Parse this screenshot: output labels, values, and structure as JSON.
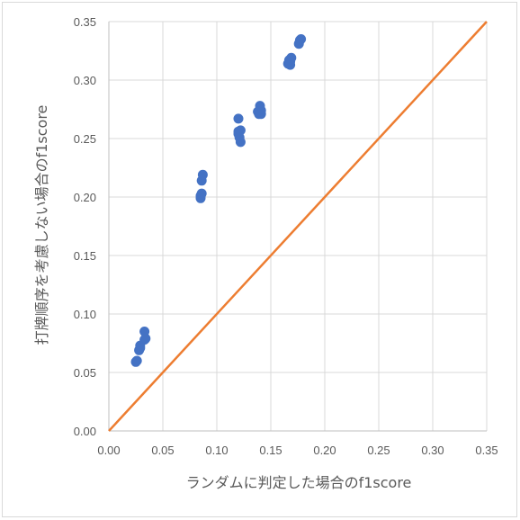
{
  "chart_data": {
    "type": "scatter",
    "xlabel": "ランダムに判定した場合のf1score",
    "ylabel": "打牌順序を考慮しない場合のf1score",
    "xlim": [
      0,
      0.35
    ],
    "ylim": [
      0,
      0.35
    ],
    "x_ticks": [
      "0.00",
      "0.05",
      "0.10",
      "0.15",
      "0.20",
      "0.25",
      "0.30",
      "0.35"
    ],
    "y_ticks": [
      "0.00",
      "0.05",
      "0.10",
      "0.15",
      "0.20",
      "0.25",
      "0.30",
      "0.35"
    ],
    "grid": true,
    "series": [
      {
        "type": "scatter",
        "color": "#4472C4",
        "points": [
          [
            0.025,
            0.059
          ],
          [
            0.026,
            0.06
          ],
          [
            0.028,
            0.069
          ],
          [
            0.029,
            0.071
          ],
          [
            0.029,
            0.073
          ],
          [
            0.033,
            0.078
          ],
          [
            0.033,
            0.085
          ],
          [
            0.034,
            0.079
          ],
          [
            0.085,
            0.199
          ],
          [
            0.085,
            0.201
          ],
          [
            0.086,
            0.203
          ],
          [
            0.086,
            0.214
          ],
          [
            0.087,
            0.219
          ],
          [
            0.12,
            0.267
          ],
          [
            0.12,
            0.256
          ],
          [
            0.12,
            0.254
          ],
          [
            0.121,
            0.251
          ],
          [
            0.122,
            0.257
          ],
          [
            0.122,
            0.247
          ],
          [
            0.138,
            0.273
          ],
          [
            0.139,
            0.271
          ],
          [
            0.14,
            0.278
          ],
          [
            0.141,
            0.274
          ],
          [
            0.141,
            0.271
          ],
          [
            0.166,
            0.314
          ],
          [
            0.167,
            0.317
          ],
          [
            0.168,
            0.316
          ],
          [
            0.169,
            0.319
          ],
          [
            0.168,
            0.313
          ],
          [
            0.176,
            0.331
          ],
          [
            0.177,
            0.334
          ],
          [
            0.178,
            0.335
          ]
        ]
      },
      {
        "type": "line",
        "color": "#ED7D31",
        "points": [
          [
            0,
            0
          ],
          [
            0.35,
            0.35
          ]
        ]
      }
    ]
  }
}
